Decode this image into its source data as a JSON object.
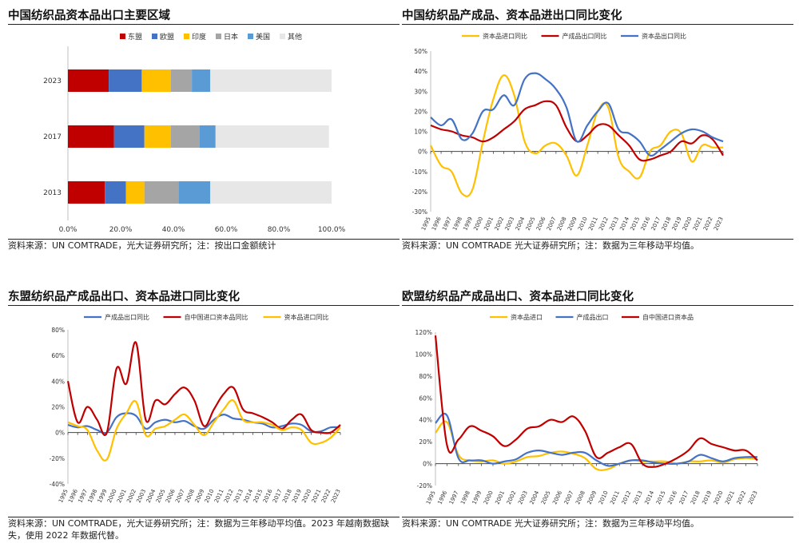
{
  "chart_data": [
    {
      "id": "c1",
      "type": "bar",
      "title": "中国纺织品资本品出口主要区域",
      "source": "资料来源：UN COMTRADE，光大证券研究所；注：按出口金额统计",
      "legend_position": "top",
      "categories": [
        "2023",
        "2017",
        "2013"
      ],
      "xlim": [
        0,
        100
      ],
      "xticks": [
        "0.0%",
        "20.0%",
        "40.0%",
        "60.0%",
        "80.0%",
        "100.0%"
      ],
      "series": [
        {
          "name": "东盟",
          "color": "#c00000",
          "values": [
            15.5,
            17.5,
            14.0
          ]
        },
        {
          "name": "欧盟",
          "color": "#4472c4",
          "values": [
            12.5,
            11.5,
            8.0
          ]
        },
        {
          "name": "印度",
          "color": "#ffc000",
          "values": [
            11.0,
            10.0,
            7.0
          ]
        },
        {
          "name": "日本",
          "color": "#a5a5a5",
          "values": [
            8.0,
            11.0,
            13.0
          ]
        },
        {
          "name": "美国",
          "color": "#5b9bd5",
          "values": [
            7.0,
            6.0,
            12.0
          ]
        },
        {
          "name": "其他",
          "color": "#e7e7e7",
          "values": [
            46.0,
            43.0,
            46.0
          ]
        }
      ]
    },
    {
      "id": "c2",
      "type": "line",
      "title": "中国纺织品产成品、资本品进出口同比变化",
      "source": "资料来源：UN COMTRADE 光大证券研究所；注：数据为三年移动平均值。",
      "legend_position": "top",
      "x": [
        "1995",
        "1996",
        "1997",
        "1998",
        "1999",
        "2000",
        "2001",
        "2002",
        "2003",
        "2004",
        "2005",
        "2006",
        "2007",
        "2008",
        "2009",
        "2010",
        "2011",
        "2012",
        "2013",
        "2014",
        "2015",
        "2016",
        "2017",
        "2018",
        "2019",
        "2020",
        "2021",
        "2022",
        "2023"
      ],
      "ylim": [
        -30,
        50
      ],
      "yticks": [
        "-30%",
        "-20%",
        "-10%",
        "0%",
        "10%",
        "20%",
        "30%",
        "40%",
        "50%"
      ],
      "series": [
        {
          "name": "资本品进口同比",
          "color": "#ffc000",
          "values": [
            3,
            -7,
            -10,
            -21,
            -19,
            5,
            26,
            38,
            28,
            5,
            -1,
            3,
            4,
            -2,
            -12,
            3,
            20,
            22,
            -3,
            -10,
            -13,
            0,
            3,
            10,
            9,
            -5,
            3,
            2,
            2
          ]
        },
        {
          "name": "产成品出口同比",
          "color": "#c00000",
          "values": [
            13,
            11,
            10,
            8,
            7,
            5,
            7,
            11,
            15,
            21,
            23,
            25,
            23,
            12,
            5,
            8,
            13,
            13,
            8,
            3,
            -4,
            -4,
            -2,
            0,
            5,
            4,
            8,
            6,
            -2
          ]
        },
        {
          "name": "资本品出口同比",
          "color": "#4472c4",
          "values": [
            17,
            13,
            16,
            6,
            9,
            20,
            21,
            28,
            23,
            36,
            39,
            36,
            31,
            22,
            5,
            13,
            20,
            24,
            11,
            9,
            5,
            -2,
            1,
            5,
            9,
            11,
            10,
            7,
            5
          ]
        }
      ]
    },
    {
      "id": "c3",
      "type": "line",
      "title": "东盟纺织品产成品出口、资本品进口同比变化",
      "source": "资料来源：UN COMTRADE，光大证券研究所；注：数据为三年移动平均值。2023 年越南数据缺失，使用 2022 年数据代替。",
      "legend_position": "top",
      "x": [
        "1995",
        "1996",
        "1997",
        "1998",
        "1999",
        "2000",
        "2001",
        "2002",
        "2003",
        "2004",
        "2005",
        "2006",
        "2007",
        "2008",
        "2009",
        "2010",
        "2011",
        "2012",
        "2013",
        "2014",
        "2015",
        "2016",
        "2017",
        "2018",
        "2019",
        "2020",
        "2021",
        "2022",
        "2023"
      ],
      "ylim": [
        -40,
        80
      ],
      "yticks": [
        "-40%",
        "-20%",
        "0%",
        "20%",
        "40%",
        "60%",
        "80%"
      ],
      "series": [
        {
          "name": "产成品出口同比",
          "color": "#4472c4",
          "values": [
            6,
            4,
            5,
            2,
            0,
            12,
            15,
            13,
            3,
            8,
            10,
            8,
            9,
            5,
            3,
            10,
            14,
            11,
            10,
            8,
            7,
            4,
            5,
            7,
            6,
            1,
            1,
            4,
            4
          ]
        },
        {
          "name": "自中国进口资本品同比",
          "color": "#c00000",
          "values": [
            40,
            8,
            20,
            10,
            0,
            50,
            38,
            70,
            10,
            25,
            22,
            30,
            35,
            25,
            5,
            18,
            30,
            35,
            18,
            15,
            12,
            8,
            3,
            10,
            14,
            2,
            0,
            0,
            6
          ]
        },
        {
          "name": "资本品进口同比",
          "color": "#ffc000",
          "values": [
            8,
            5,
            2,
            -14,
            -21,
            3,
            15,
            24,
            -2,
            3,
            5,
            10,
            14,
            6,
            -2,
            8,
            18,
            25,
            10,
            8,
            8,
            6,
            2,
            4,
            2,
            -8,
            -8,
            -4,
            4
          ]
        }
      ]
    },
    {
      "id": "c4",
      "type": "line",
      "title": "欧盟纺织品产成品出口、资本品进口同比变化",
      "source": "资料来源：UN COMTRADE 光大证券研究所；注：数据为三年移动平均值。",
      "legend_position": "top",
      "x": [
        "1995",
        "1996",
        "1997",
        "1998",
        "1999",
        "2000",
        "2001",
        "2002",
        "2003",
        "2004",
        "2005",
        "2006",
        "2007",
        "2008",
        "2009",
        "2010",
        "2011",
        "2012",
        "2013",
        "2014",
        "2015",
        "2016",
        "2017",
        "2018",
        "2019",
        "2020",
        "2021",
        "2022",
        "2023"
      ],
      "ylim": [
        -20,
        120
      ],
      "yticks": [
        "-20%",
        "0%",
        "20%",
        "40%",
        "60%",
        "80%",
        "100%",
        "120%"
      ],
      "series": [
        {
          "name": "资本品进口",
          "color": "#ffc000",
          "values": [
            28,
            38,
            8,
            3,
            2,
            3,
            0,
            2,
            6,
            7,
            10,
            11,
            9,
            5,
            -5,
            -5,
            0,
            3,
            2,
            2,
            2,
            0,
            2,
            2,
            3,
            1,
            4,
            5,
            4
          ]
        },
        {
          "name": "产成品出口",
          "color": "#4472c4",
          "values": [
            37,
            44,
            5,
            3,
            3,
            0,
            2,
            4,
            10,
            12,
            10,
            8,
            10,
            10,
            3,
            -2,
            0,
            3,
            3,
            1,
            0,
            0,
            2,
            8,
            5,
            2,
            5,
            6,
            6
          ]
        },
        {
          "name": "自中国进口资本品",
          "color": "#c00000",
          "values": [
            117,
            17,
            22,
            34,
            30,
            25,
            16,
            22,
            32,
            34,
            40,
            38,
            43,
            30,
            6,
            10,
            15,
            18,
            0,
            -3,
            0,
            5,
            12,
            23,
            18,
            15,
            12,
            12,
            3
          ]
        }
      ]
    }
  ]
}
